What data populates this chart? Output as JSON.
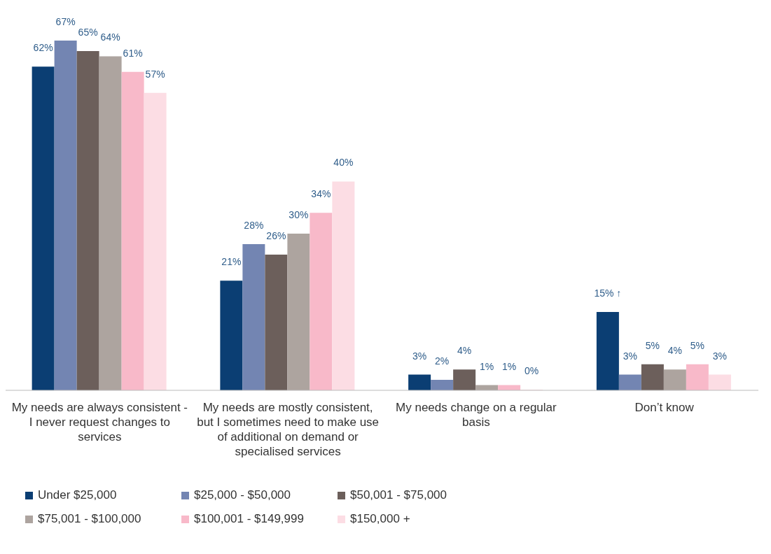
{
  "chart_data": {
    "type": "bar",
    "categories": [
      "My needs are always consistent - I never request changes to services",
      "My needs are mostly consistent, but I sometimes need to make use of additional on demand or specialised services",
      "My needs change on a regular basis",
      "Don’t know"
    ],
    "series": [
      {
        "name": "Under $25,000",
        "color": "#0b3e73",
        "values": [
          62,
          21,
          3,
          15
        ],
        "value_labels": [
          "62%",
          "21%",
          "3%",
          "15% ↑"
        ]
      },
      {
        "name": "$25,000 - $50,000",
        "color": "#7385b2",
        "values": [
          67,
          28,
          2,
          3
        ],
        "value_labels": [
          "67%",
          "28%",
          "2%",
          "3%"
        ]
      },
      {
        "name": "$50,001 - $75,000",
        "color": "#6c5f5b",
        "values": [
          65,
          26,
          4,
          5
        ],
        "value_labels": [
          "65%",
          "26%",
          "4%",
          "5%"
        ]
      },
      {
        "name": "$75,001 - $100,000",
        "color": "#ada49f",
        "values": [
          64,
          30,
          1,
          4
        ],
        "value_labels": [
          "64%",
          "30%",
          "1%",
          "4%"
        ]
      },
      {
        "name": "$100,001 - $149,999",
        "color": "#f8b9c9",
        "values": [
          61,
          34,
          1,
          5
        ],
        "value_labels": [
          "61%",
          "34%",
          "1%",
          "5%"
        ]
      },
      {
        "name": "$150,000 +",
        "color": "#fcdde4",
        "values": [
          57,
          40,
          0,
          3
        ],
        "value_labels": [
          "57%",
          "40%",
          "0%",
          "3%"
        ]
      }
    ],
    "legend": "bottom",
    "grid": false
  }
}
